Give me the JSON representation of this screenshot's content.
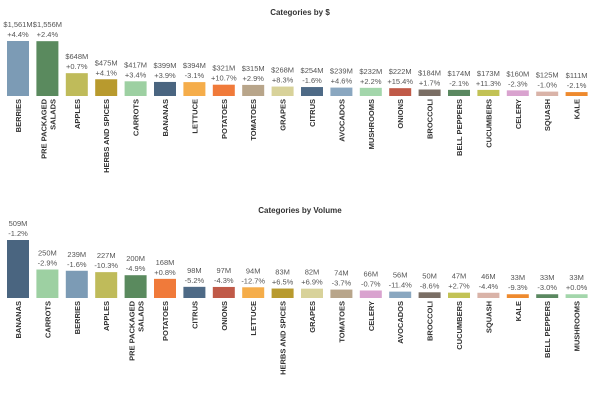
{
  "colors": {
    "BERRIES": "#7c9bb5",
    "PRE PACKAGED SALADS": "#5a8a5e",
    "APPLES": "#bfbb5a",
    "HERBS AND SPICES": "#b89a2e",
    "CARROTS": "#9dd0a2",
    "BANANAS": "#4a6580",
    "LETTUCE": "#f5ad4a",
    "POTATOES": "#f07a3a",
    "TOMATOES": "#b8a58a",
    "GRAPES": "#d8d29a",
    "CITRUS": "#4e6a86",
    "AVOCADOS": "#8aa7c0",
    "MUSHROOMS": "#a3d6ab",
    "ONIONS": "#c05a48",
    "BROCCOLI": "#7a6e64",
    "BELL PEPPERS": "#5a8860",
    "CUCUMBERS": "#c2c255",
    "CELERY": "#d9a3cf",
    "SQUASH": "#d9b3a8",
    "KALE": "#ee8a2e"
  },
  "chart_data": [
    {
      "type": "bar",
      "title": "Categories by $",
      "xlabel": "",
      "ylabel": "",
      "categories": [
        "BERRIES",
        "PRE PACKAGED SALADS",
        "APPLES",
        "HERBS AND SPICES",
        "CARROTS",
        "BANANAS",
        "LETTUCE",
        "POTATOES",
        "TOMATOES",
        "GRAPES",
        "CITRUS",
        "AVOCADOS",
        "MUSHROOMS",
        "ONIONS",
        "BROCCOLI",
        "BELL PEPPERS",
        "CUCUMBERS",
        "CELERY",
        "SQUASH",
        "KALE"
      ],
      "values": [
        1561,
        1556,
        648,
        475,
        417,
        399,
        394,
        321,
        315,
        268,
        254,
        239,
        232,
        222,
        184,
        174,
        173,
        160,
        125,
        111
      ],
      "value_labels": [
        "$1,561M",
        "$1,556M",
        "$648M",
        "$475M",
        "$417M",
        "$399M",
        "$394M",
        "$321M",
        "$315M",
        "$268M",
        "$254M",
        "$239M",
        "$232M",
        "$222M",
        "$184M",
        "$174M",
        "$173M",
        "$160M",
        "$125M",
        "$111M"
      ],
      "change_labels": [
        "+4.4%",
        "+2.4%",
        "+0.7%",
        "+4.1%",
        "+3.4%",
        "+3.9%",
        "-3.1%",
        "+10.7%",
        "+2.9%",
        "+8.3%",
        "-1.6%",
        "+4.6%",
        "+2.2%",
        "+15.4%",
        "+1.7%",
        "-2.1%",
        "+11.3%",
        "-2.3%",
        "-1.0%",
        "-2.1%"
      ],
      "ylim": [
        0,
        1561
      ]
    },
    {
      "type": "bar",
      "title": "Categories by Volume",
      "xlabel": "",
      "ylabel": "",
      "categories": [
        "BANANAS",
        "CARROTS",
        "BERRIES",
        "APPLES",
        "PRE PACKAGED SALADS",
        "POTATOES",
        "CITRUS",
        "ONIONS",
        "LETTUCE",
        "HERBS AND SPICES",
        "GRAPES",
        "TOMATOES",
        "CELERY",
        "AVOCADOS",
        "BROCCOLI",
        "CUCUMBERS",
        "SQUASH",
        "KALE",
        "BELL PEPPERS",
        "MUSHROOMS"
      ],
      "values": [
        509,
        250,
        239,
        227,
        200,
        168,
        98,
        97,
        94,
        83,
        82,
        74,
        66,
        56,
        50,
        47,
        46,
        33,
        33,
        33
      ],
      "value_labels": [
        "509M",
        "250M",
        "239M",
        "227M",
        "200M",
        "168M",
        "98M",
        "97M",
        "94M",
        "83M",
        "82M",
        "74M",
        "66M",
        "56M",
        "50M",
        "47M",
        "46M",
        "33M",
        "33M",
        "33M"
      ],
      "change_labels": [
        "-1.2%",
        "-2.9%",
        "-1.6%",
        "-10.3%",
        "-4.9%",
        "+0.8%",
        "-5.2%",
        "-4.3%",
        "-12.7%",
        "+6.5%",
        "+6.9%",
        "-3.7%",
        "-0.7%",
        "-11.4%",
        "-8.6%",
        "+2.7%",
        "-4.4%",
        "-9.3%",
        "-3.0%",
        "+0.0%"
      ],
      "ylim": [
        0,
        509
      ]
    }
  ]
}
